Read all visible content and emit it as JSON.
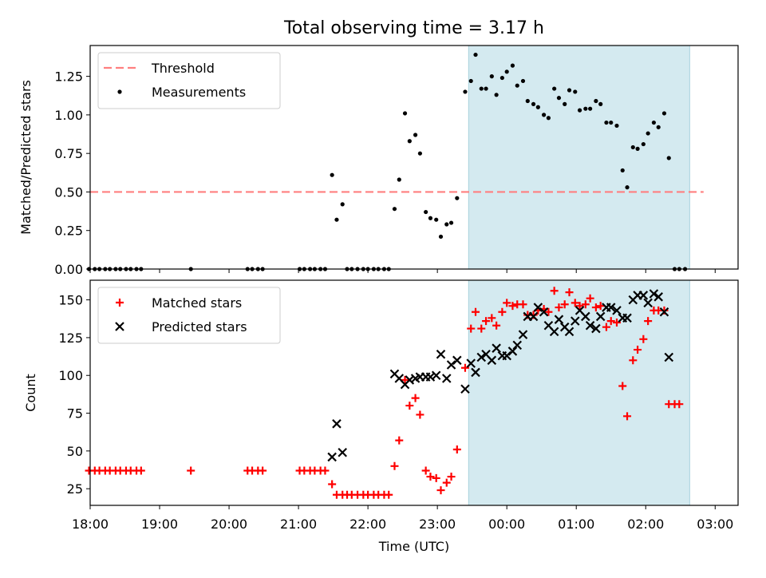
{
  "title": "Total observing time = 3.17 h",
  "colors": {
    "threshold": "#ff7f7f",
    "measurement": "#000000",
    "matched": "#ff0000",
    "predicted": "#000000",
    "span_fill": "#d4eaf0",
    "span_edge": "#a8d2dd"
  },
  "chart_data": [
    {
      "type": "scatter",
      "ylabel": "Matched/Predicted stars",
      "ylim": [
        0,
        1.45
      ],
      "yticks": [
        0.0,
        0.25,
        0.5,
        0.75,
        1.0,
        1.25
      ],
      "ytick_labels": [
        "0.00",
        "0.25",
        "0.50",
        "0.75",
        "1.00",
        "1.25"
      ],
      "legend_position": "upper left",
      "highlight_span": [
        "23:27",
        "02:38"
      ],
      "threshold": {
        "name": "Threshold",
        "value": 0.5,
        "x_range": [
          "18:00",
          "02:50"
        ]
      },
      "series": [
        {
          "name": "Measurements",
          "points": [
            [
              "17:59",
              0
            ],
            [
              "18:04",
              0
            ],
            [
              "18:08",
              0
            ],
            [
              "18:13",
              0
            ],
            [
              "18:17",
              0
            ],
            [
              "18:22",
              0
            ],
            [
              "18:26",
              0
            ],
            [
              "18:31",
              0
            ],
            [
              "18:35",
              0
            ],
            [
              "18:40",
              0
            ],
            [
              "18:44",
              0
            ],
            [
              "19:27",
              0
            ],
            [
              "20:16",
              0
            ],
            [
              "20:20",
              0
            ],
            [
              "20:25",
              0
            ],
            [
              "20:29",
              0
            ],
            [
              "21:01",
              0
            ],
            [
              "21:05",
              0
            ],
            [
              "21:10",
              0
            ],
            [
              "21:14",
              0
            ],
            [
              "21:19",
              0
            ],
            [
              "21:23",
              0
            ],
            [
              "21:29",
              0.61
            ],
            [
              "21:33",
              0.32
            ],
            [
              "21:38",
              0.42
            ],
            [
              "21:42",
              0
            ],
            [
              "21:46",
              0
            ],
            [
              "21:51",
              0
            ],
            [
              "21:56",
              0
            ],
            [
              "22:00",
              0
            ],
            [
              "22:05",
              0
            ],
            [
              "22:09",
              0
            ],
            [
              "22:14",
              0
            ],
            [
              "22:18",
              0
            ],
            [
              "22:23",
              0.39
            ],
            [
              "22:27",
              0.58
            ],
            [
              "22:32",
              1.01
            ],
            [
              "22:36",
              0.83
            ],
            [
              "22:41",
              0.87
            ],
            [
              "22:45",
              0.75
            ],
            [
              "22:50",
              0.37
            ],
            [
              "22:54",
              0.33
            ],
            [
              "22:59",
              0.32
            ],
            [
              "23:03",
              0.21
            ],
            [
              "23:08",
              0.29
            ],
            [
              "23:12",
              0.3
            ],
            [
              "23:17",
              0.46
            ],
            [
              "23:24",
              1.15
            ],
            [
              "23:29",
              1.22
            ],
            [
              "23:33",
              1.39
            ],
            [
              "23:38",
              1.17
            ],
            [
              "23:42",
              1.17
            ],
            [
              "23:47",
              1.25
            ],
            [
              "23:51",
              1.13
            ],
            [
              "23:56",
              1.24
            ],
            [
              "00:00",
              1.28
            ],
            [
              "00:05",
              1.32
            ],
            [
              "00:09",
              1.19
            ],
            [
              "00:14",
              1.22
            ],
            [
              "00:18",
              1.09
            ],
            [
              "00:23",
              1.07
            ],
            [
              "00:27",
              1.05
            ],
            [
              "00:32",
              1.0
            ],
            [
              "00:36",
              0.98
            ],
            [
              "00:41",
              1.17
            ],
            [
              "00:45",
              1.11
            ],
            [
              "00:50",
              1.07
            ],
            [
              "00:54",
              1.16
            ],
            [
              "00:59",
              1.15
            ],
            [
              "01:03",
              1.03
            ],
            [
              "01:08",
              1.04
            ],
            [
              "01:12",
              1.04
            ],
            [
              "01:17",
              1.09
            ],
            [
              "01:21",
              1.07
            ],
            [
              "01:26",
              0.95
            ],
            [
              "01:30",
              0.95
            ],
            [
              "01:35",
              0.93
            ],
            [
              "01:40",
              0.64
            ],
            [
              "01:44",
              0.53
            ],
            [
              "01:49",
              0.79
            ],
            [
              "01:53",
              0.78
            ],
            [
              "01:58",
              0.81
            ],
            [
              "02:02",
              0.88
            ],
            [
              "02:07",
              0.95
            ],
            [
              "02:11",
              0.92
            ],
            [
              "02:16",
              1.01
            ],
            [
              "02:20",
              0.72
            ],
            [
              "02:25",
              0
            ],
            [
              "02:29",
              0
            ],
            [
              "02:34",
              0
            ]
          ]
        }
      ]
    },
    {
      "type": "scatter",
      "xlabel": "Time (UTC)",
      "ylabel": "Count",
      "ylim": [
        14,
        163
      ],
      "yticks": [
        25,
        50,
        75,
        100,
        125,
        150
      ],
      "ytick_labels": [
        "25",
        "50",
        "75",
        "100",
        "125",
        "150"
      ],
      "xticks": [
        "18:00",
        "19:00",
        "20:00",
        "21:00",
        "22:00",
        "23:00",
        "00:00",
        "01:00",
        "02:00",
        "03:00"
      ],
      "legend_position": "upper left",
      "highlight_span": [
        "23:27",
        "02:38"
      ],
      "series": [
        {
          "name": "Matched stars",
          "marker": "+",
          "points": [
            [
              "17:59",
              37
            ],
            [
              "18:04",
              37
            ],
            [
              "18:08",
              37
            ],
            [
              "18:13",
              37
            ],
            [
              "18:17",
              37
            ],
            [
              "18:22",
              37
            ],
            [
              "18:26",
              37
            ],
            [
              "18:31",
              37
            ],
            [
              "18:35",
              37
            ],
            [
              "18:40",
              37
            ],
            [
              "18:44",
              37
            ],
            [
              "19:27",
              37
            ],
            [
              "20:16",
              37
            ],
            [
              "20:20",
              37
            ],
            [
              "20:25",
              37
            ],
            [
              "20:29",
              37
            ],
            [
              "21:01",
              37
            ],
            [
              "21:05",
              37
            ],
            [
              "21:10",
              37
            ],
            [
              "21:14",
              37
            ],
            [
              "21:19",
              37
            ],
            [
              "21:23",
              37
            ],
            [
              "21:29",
              28
            ],
            [
              "21:33",
              21
            ],
            [
              "21:38",
              21
            ],
            [
              "21:42",
              21
            ],
            [
              "21:46",
              21
            ],
            [
              "21:51",
              21
            ],
            [
              "21:56",
              21
            ],
            [
              "22:00",
              21
            ],
            [
              "22:05",
              21
            ],
            [
              "22:09",
              21
            ],
            [
              "22:14",
              21
            ],
            [
              "22:18",
              21
            ],
            [
              "22:23",
              40
            ],
            [
              "22:27",
              57
            ],
            [
              "22:32",
              97
            ],
            [
              "22:36",
              80
            ],
            [
              "22:41",
              85
            ],
            [
              "22:45",
              74
            ],
            [
              "22:50",
              37
            ],
            [
              "22:54",
              33
            ],
            [
              "22:59",
              32
            ],
            [
              "23:03",
              24
            ],
            [
              "23:08",
              29
            ],
            [
              "23:12",
              33
            ],
            [
              "23:17",
              51
            ],
            [
              "23:24",
              105
            ],
            [
              "23:29",
              131
            ],
            [
              "23:33",
              142
            ],
            [
              "23:38",
              131
            ],
            [
              "23:42",
              136
            ],
            [
              "23:47",
              138
            ],
            [
              "23:51",
              133
            ],
            [
              "23:56",
              142
            ],
            [
              "00:00",
              148
            ],
            [
              "00:05",
              146
            ],
            [
              "00:09",
              147
            ],
            [
              "00:14",
              147
            ],
            [
              "00:18",
              140
            ],
            [
              "00:23",
              140
            ],
            [
              "00:27",
              143
            ],
            [
              "00:32",
              144
            ],
            [
              "00:36",
              142
            ],
            [
              "00:41",
              156
            ],
            [
              "00:45",
              145
            ],
            [
              "00:50",
              147
            ],
            [
              "00:54",
              155
            ],
            [
              "00:59",
              148
            ],
            [
              "01:03",
              146
            ],
            [
              "01:08",
              147
            ],
            [
              "01:12",
              151
            ],
            [
              "01:17",
              145
            ],
            [
              "01:21",
              146
            ],
            [
              "01:26",
              132
            ],
            [
              "01:30",
              136
            ],
            [
              "01:35",
              135
            ],
            [
              "01:40",
              93
            ],
            [
              "01:44",
              73
            ],
            [
              "01:49",
              110
            ],
            [
              "01:53",
              117
            ],
            [
              "01:58",
              124
            ],
            [
              "02:02",
              136
            ],
            [
              "02:07",
              143
            ],
            [
              "02:11",
              143
            ],
            [
              "02:16",
              143
            ],
            [
              "02:20",
              81
            ],
            [
              "02:25",
              81
            ],
            [
              "02:29",
              81
            ]
          ]
        },
        {
          "name": "Predicted stars",
          "marker": "x",
          "points": [
            [
              "21:29",
              46
            ],
            [
              "21:33",
              68
            ],
            [
              "21:38",
              49
            ],
            [
              "22:23",
              101
            ],
            [
              "22:27",
              98
            ],
            [
              "22:32",
              94
            ],
            [
              "22:36",
              97
            ],
            [
              "22:41",
              98
            ],
            [
              "22:45",
              99
            ],
            [
              "22:50",
              99
            ],
            [
              "22:54",
              99
            ],
            [
              "22:59",
              100
            ],
            [
              "23:03",
              114
            ],
            [
              "23:08",
              98
            ],
            [
              "23:12",
              107
            ],
            [
              "23:17",
              110
            ],
            [
              "23:24",
              91
            ],
            [
              "23:29",
              108
            ],
            [
              "23:33",
              102
            ],
            [
              "23:38",
              112
            ],
            [
              "23:42",
              114
            ],
            [
              "23:47",
              110
            ],
            [
              "23:51",
              118
            ],
            [
              "23:56",
              113
            ],
            [
              "00:00",
              113
            ],
            [
              "00:05",
              116
            ],
            [
              "00:09",
              120
            ],
            [
              "00:14",
              127
            ],
            [
              "00:18",
              139
            ],
            [
              "00:23",
              139
            ],
            [
              "00:27",
              145
            ],
            [
              "00:32",
              142
            ],
            [
              "00:36",
              133
            ],
            [
              "00:41",
              129
            ],
            [
              "00:45",
              137
            ],
            [
              "00:50",
              132
            ],
            [
              "00:54",
              129
            ],
            [
              "00:59",
              136
            ],
            [
              "01:03",
              143
            ],
            [
              "01:08",
              139
            ],
            [
              "01:12",
              133
            ],
            [
              "01:17",
              131
            ],
            [
              "01:21",
              139
            ],
            [
              "01:26",
              145
            ],
            [
              "01:30",
              145
            ],
            [
              "01:35",
              143
            ],
            [
              "01:40",
              138
            ],
            [
              "01:44",
              138
            ],
            [
              "01:49",
              150
            ],
            [
              "01:53",
              153
            ],
            [
              "01:58",
              153
            ],
            [
              "02:02",
              148
            ],
            [
              "02:07",
              154
            ],
            [
              "02:11",
              152
            ],
            [
              "02:16",
              142
            ],
            [
              "02:20",
              112
            ]
          ]
        }
      ]
    }
  ]
}
